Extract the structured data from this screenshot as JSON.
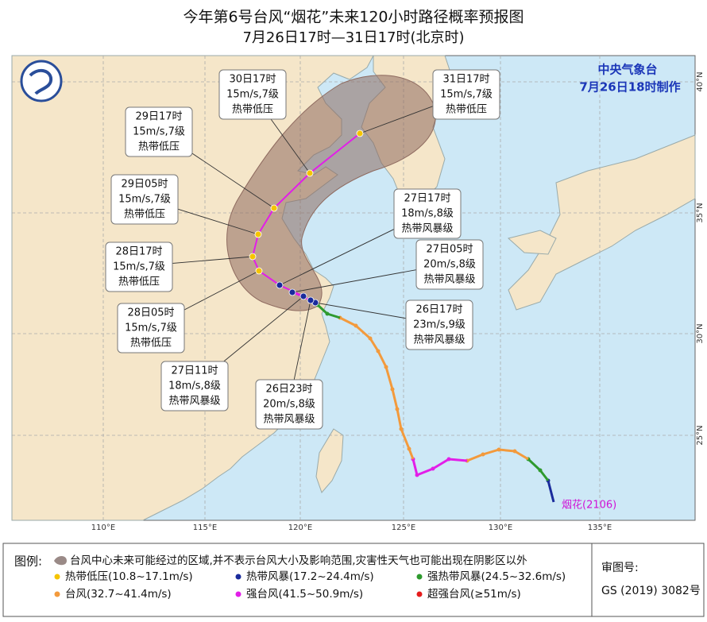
{
  "header": {
    "title": "今年第6号台风“烟花”未来120小时路径概率预报图",
    "subtitle": "7月26日17时—31日17时(北京时)"
  },
  "agency": {
    "name": "中央气象台",
    "made": "7月26日18时制作"
  },
  "map": {
    "lon_labels": [
      "110°E",
      "115°E",
      "120°E",
      "125°E",
      "130°E",
      "135°E"
    ],
    "lat_labels": [
      "25°N",
      "30°N",
      "35°N",
      "40°N"
    ],
    "typhoon_label": "烟花(2106)"
  },
  "forecasts": [
    {
      "time": "30日17时",
      "wind": "15m/s,7级",
      "grade": "热带低压"
    },
    {
      "time": "31日17时",
      "wind": "15m/s,7级",
      "grade": "热带低压"
    },
    {
      "time": "29日17时",
      "wind": "15m/s,7级",
      "grade": "热带低压"
    },
    {
      "time": "29日05时",
      "wind": "15m/s,7级",
      "grade": "热带低压"
    },
    {
      "time": "27日17时",
      "wind": "18m/s,8级",
      "grade": "热带风暴级"
    },
    {
      "time": "28日17时",
      "wind": "15m/s,7级",
      "grade": "热带低压"
    },
    {
      "time": "27日05时",
      "wind": "20m/s,8级",
      "grade": "热带风暴级"
    },
    {
      "time": "26日17时",
      "wind": "23m/s,9级",
      "grade": "热带风暴级"
    },
    {
      "time": "28日05时",
      "wind": "15m/s,7级",
      "grade": "热带低压"
    },
    {
      "time": "27日11时",
      "wind": "18m/s,8级",
      "grade": "热带风暴级"
    },
    {
      "time": "26日23时",
      "wind": "20m/s,8级",
      "grade": "热带风暴级"
    }
  ],
  "legend": {
    "title": "图例:",
    "cone": "台风中心未来可能经过的区域,并不表示台风大小及影响范围,灾害性天气也可能出现在阴影区以外",
    "items": [
      {
        "label": "热带低压(10.8~17.1m/s)",
        "color": "#f5c400"
      },
      {
        "label": "热带风暴(17.2~24.4m/s)",
        "color": "#1a2b9c"
      },
      {
        "label": "强热带风暴(24.5~32.6m/s)",
        "color": "#2e9a2e"
      },
      {
        "label": "台风(32.7~41.4m/s)",
        "color": "#f39a3c"
      },
      {
        "label": "强台风(41.5~50.9m/s)",
        "color": "#e21ee8"
      },
      {
        "label": "超强台风(≥51m/s)",
        "color": "#e51c1c"
      }
    ]
  },
  "map_number": {
    "label": "审图号:",
    "value": "GS (2019) 3082号"
  }
}
